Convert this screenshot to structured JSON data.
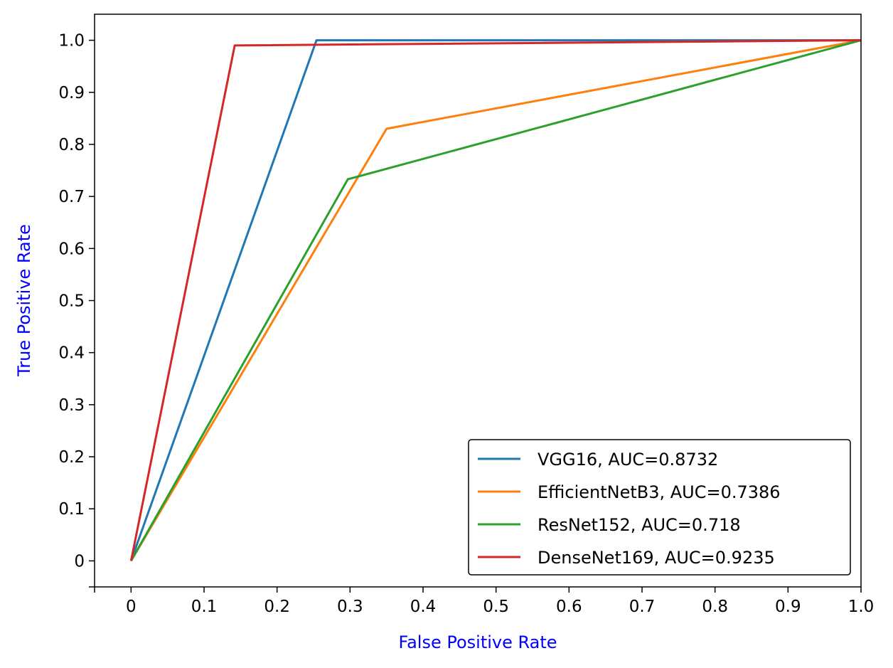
{
  "chart_data": {
    "type": "line",
    "title": "",
    "xlabel": "False Positive Rate",
    "ylabel": "True Positive Rate",
    "xlim": [
      -0.05,
      1.0
    ],
    "ylim": [
      -0.05,
      1.05
    ],
    "grid": false,
    "legend_position": "lower-right",
    "xticks": [
      0,
      0.1,
      0.2,
      0.3,
      0.4,
      0.5,
      0.6,
      0.7,
      0.8,
      0.9,
      1.0
    ],
    "xtick_labels": [
      "0",
      "0.1",
      "0.2",
      "0.3",
      "0.4",
      "0.5",
      "0.6",
      "0.7",
      "0.8",
      "0.9",
      "1.0"
    ],
    "yticks": [
      0,
      0.1,
      0.2,
      0.3,
      0.4,
      0.5,
      0.6,
      0.7,
      0.8,
      0.9,
      1.0
    ],
    "ytick_labels": [
      "0",
      "0.1",
      "0.2",
      "0.3",
      "0.4",
      "0.5",
      "0.6",
      "0.7",
      "0.8",
      "0.9",
      "1.0"
    ],
    "series": [
      {
        "name": "VGG16, AUC=0.8732",
        "color": "#1f77b4",
        "x": [
          0,
          0.254,
          1.0
        ],
        "y": [
          0,
          1.0,
          1.0
        ]
      },
      {
        "name": "EfficientNetB3, AUC=0.7386",
        "color": "#ff7f0e",
        "x": [
          0,
          0.35,
          1.0
        ],
        "y": [
          0,
          0.83,
          1.0
        ]
      },
      {
        "name": "ResNet152, AUC=0.718",
        "color": "#2ca02c",
        "x": [
          0,
          0.297,
          1.0
        ],
        "y": [
          0,
          0.733,
          1.0
        ]
      },
      {
        "name": "DenseNet169, AUC=0.9235",
        "color": "#d62728",
        "x": [
          0,
          0.142,
          1.0
        ],
        "y": [
          0,
          0.99,
          1.0
        ]
      }
    ]
  }
}
